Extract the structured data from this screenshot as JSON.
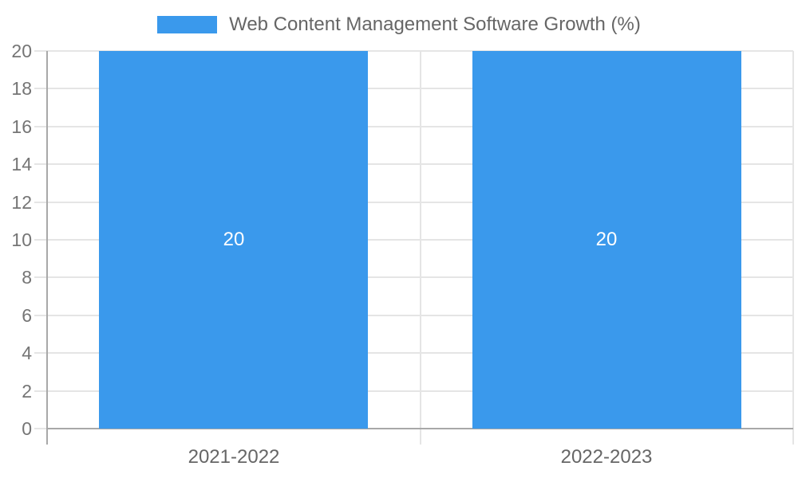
{
  "chart_data": {
    "type": "bar",
    "title": "Web Content Management Software Growth (%)",
    "categories": [
      "2021-2022",
      "2022-2023"
    ],
    "series": [
      {
        "name": "Web Content Management Software Growth (%)",
        "values": [
          20,
          20
        ]
      }
    ],
    "bar_value_labels": [
      "20",
      "20"
    ],
    "xlabel": "",
    "ylabel": "",
    "ylim": [
      0,
      20
    ],
    "ytick_step": 2,
    "yticks": [
      0,
      2,
      4,
      6,
      8,
      10,
      12,
      14,
      16,
      18,
      20
    ],
    "grid": true,
    "legend_position": "top",
    "colors": {
      "bar": "#3a99ec",
      "grid": "#e5e5e5",
      "axis": "#a8a8a8",
      "tick_text": "#757575",
      "legend_text": "#666666",
      "bar_label_text": "#ffffff"
    }
  }
}
